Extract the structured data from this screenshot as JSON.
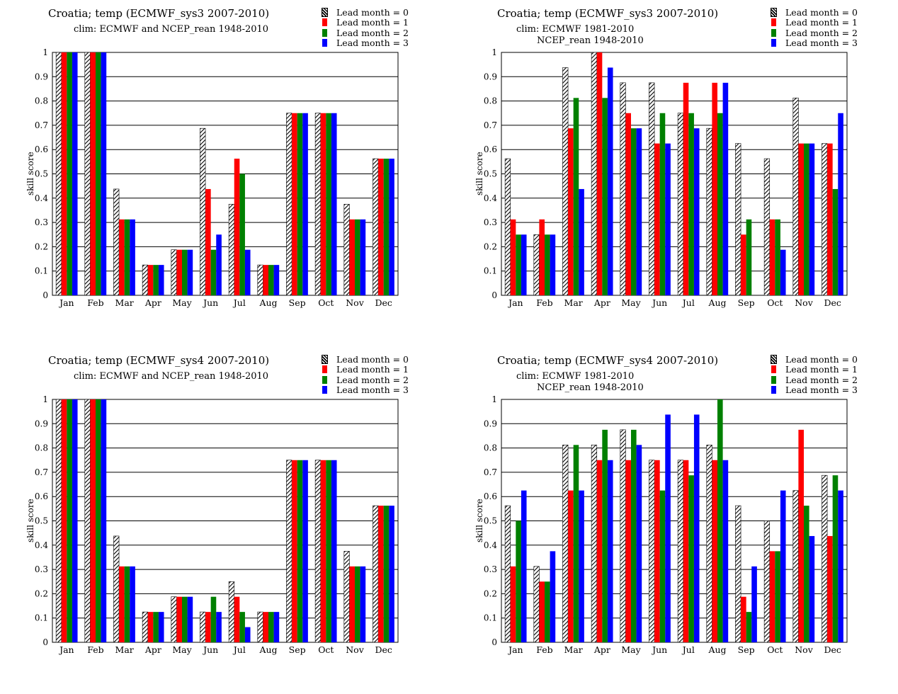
{
  "legend": [
    {
      "label": "Lead month = 0",
      "color": "hatch"
    },
    {
      "label": "Lead month = 1",
      "color": "#ff0000"
    },
    {
      "label": "Lead month = 2",
      "color": "#008000"
    },
    {
      "label": "Lead month = 3",
      "color": "#0000ff"
    }
  ],
  "ylabel": "skill score",
  "chart_data": [
    {
      "type": "bar",
      "title": "Croatia; temp (ECMWF_sys3 2007-2010)",
      "subtitle": [
        "clim: ECMWF and NCEP_rean 1948-2010"
      ],
      "ylabel": "skill score",
      "ylim": [
        0,
        1
      ],
      "yticks": [
        "0",
        "0.1",
        "0.2",
        "0.3",
        "0.4",
        "0.5",
        "0.6",
        "0.7",
        "0.8",
        "0.9",
        "1"
      ],
      "categories": [
        "Jan",
        "Feb",
        "Mar",
        "Apr",
        "May",
        "Jun",
        "Jul",
        "Aug",
        "Sep",
        "Oct",
        "Nov",
        "Dec"
      ],
      "series": [
        {
          "name": "Lead month = 0",
          "values": [
            1,
            1,
            0.4375,
            0.125,
            0.1875,
            0.6875,
            0.375,
            0.125,
            0.75,
            0.75,
            0.375,
            0.5625
          ]
        },
        {
          "name": "Lead month = 1",
          "values": [
            1,
            1,
            0.3125,
            0.125,
            0.1875,
            0.4375,
            0.5625,
            0.125,
            0.75,
            0.75,
            0.3125,
            0.5625
          ]
        },
        {
          "name": "Lead month = 2",
          "values": [
            1,
            1,
            0.3125,
            0.125,
            0.1875,
            0.1875,
            0.5,
            0.125,
            0.75,
            0.75,
            0.3125,
            0.5625
          ]
        },
        {
          "name": "Lead month = 3",
          "values": [
            1,
            1,
            0.3125,
            0.125,
            0.1875,
            0.25,
            0.1875,
            0.125,
            0.75,
            0.75,
            0.3125,
            0.5625
          ]
        }
      ]
    },
    {
      "type": "bar",
      "title": "Croatia; temp (ECMWF_sys3 2007-2010)",
      "subtitle": [
        "clim: ECMWF 1981-2010",
        "NCEP_rean 1948-2010"
      ],
      "ylabel": "skill score",
      "ylim": [
        0,
        1
      ],
      "yticks": [
        "0",
        "0.1",
        "0.2",
        "0.3",
        "0.4",
        "0.5",
        "0.6",
        "0.7",
        "0.8",
        "0.9",
        "1"
      ],
      "categories": [
        "Jan",
        "Feb",
        "Mar",
        "Apr",
        "May",
        "Jun",
        "Jul",
        "Aug",
        "Sep",
        "Oct",
        "Nov",
        "Dec"
      ],
      "series": [
        {
          "name": "Lead month = 0",
          "values": [
            0.5625,
            0.25,
            0.9375,
            1,
            0.875,
            0.875,
            0.75,
            0.6875,
            0.625,
            0.5625,
            0.8125,
            0.625
          ]
        },
        {
          "name": "Lead month = 1",
          "values": [
            0.3125,
            0.3125,
            0.6875,
            1,
            0.75,
            0.625,
            0.875,
            0.875,
            0.25,
            0.3125,
            0.625,
            0.625
          ]
        },
        {
          "name": "Lead month = 2",
          "values": [
            0.25,
            0.25,
            0.8125,
            0.8125,
            0.6875,
            0.75,
            0.75,
            0.75,
            0.3125,
            0.3125,
            0.625,
            0.4375
          ]
        },
        {
          "name": "Lead month = 3",
          "values": [
            0.25,
            0.25,
            0.4375,
            0.9375,
            0.6875,
            0.625,
            0.6875,
            0.875,
            0,
            0.1875,
            0.625,
            0.75
          ]
        }
      ]
    },
    {
      "type": "bar",
      "title": "Croatia; temp (ECMWF_sys4 2007-2010)",
      "subtitle": [
        "clim: ECMWF and NCEP_rean 1948-2010"
      ],
      "ylabel": "skill score",
      "ylim": [
        0,
        1
      ],
      "yticks": [
        "0",
        "0.1",
        "0.2",
        "0.3",
        "0.4",
        "0.5",
        "0.6",
        "0.7",
        "0.8",
        "0.9",
        "1"
      ],
      "categories": [
        "Jan",
        "Feb",
        "Mar",
        "Apr",
        "May",
        "Jun",
        "Jul",
        "Aug",
        "Sep",
        "Oct",
        "Nov",
        "Dec"
      ],
      "series": [
        {
          "name": "Lead month = 0",
          "values": [
            1,
            1,
            0.4375,
            0.125,
            0.1875,
            0.125,
            0.25,
            0.125,
            0.75,
            0.75,
            0.375,
            0.5625
          ]
        },
        {
          "name": "Lead month = 1",
          "values": [
            1,
            1,
            0.3125,
            0.125,
            0.1875,
            0.125,
            0.1875,
            0.125,
            0.75,
            0.75,
            0.3125,
            0.5625
          ]
        },
        {
          "name": "Lead month = 2",
          "values": [
            1,
            1,
            0.3125,
            0.125,
            0.1875,
            0.1875,
            0.125,
            0.125,
            0.75,
            0.75,
            0.3125,
            0.5625
          ]
        },
        {
          "name": "Lead month = 3",
          "values": [
            1,
            1,
            0.3125,
            0.125,
            0.1875,
            0.125,
            0.0625,
            0.125,
            0.75,
            0.75,
            0.3125,
            0.5625
          ]
        }
      ]
    },
    {
      "type": "bar",
      "title": "Croatia; temp (ECMWF_sys4 2007-2010)",
      "subtitle": [
        "clim: ECMWF 1981-2010",
        "NCEP_rean 1948-2010"
      ],
      "ylabel": "skill score",
      "ylim": [
        0,
        1
      ],
      "yticks": [
        "0",
        "0.1",
        "0.2",
        "0.3",
        "0.4",
        "0.5",
        "0.6",
        "0.7",
        "0.8",
        "0.9",
        "1"
      ],
      "categories": [
        "Jan",
        "Feb",
        "Mar",
        "Apr",
        "May",
        "Jun",
        "Jul",
        "Aug",
        "Sep",
        "Oct",
        "Nov",
        "Dec"
      ],
      "series": [
        {
          "name": "Lead month = 0",
          "values": [
            0.5625,
            0.3125,
            0.8125,
            0.8125,
            0.875,
            0.75,
            0.75,
            0.8125,
            0.5625,
            0.5,
            0.625,
            0.6875
          ]
        },
        {
          "name": "Lead month = 1",
          "values": [
            0.3125,
            0.25,
            0.625,
            0.75,
            0.75,
            0.75,
            0.75,
            0.75,
            0.1875,
            0.375,
            0.875,
            0.4375
          ]
        },
        {
          "name": "Lead month = 2",
          "values": [
            0.5,
            0.25,
            0.8125,
            0.875,
            0.875,
            0.625,
            0.6875,
            1,
            0.125,
            0.375,
            0.5625,
            0.6875
          ]
        },
        {
          "name": "Lead month = 3",
          "values": [
            0.625,
            0.375,
            0.625,
            0.75,
            0.8125,
            0.9375,
            0.9375,
            0.75,
            0.3125,
            0.625,
            0.4375,
            0.625
          ]
        }
      ]
    }
  ]
}
